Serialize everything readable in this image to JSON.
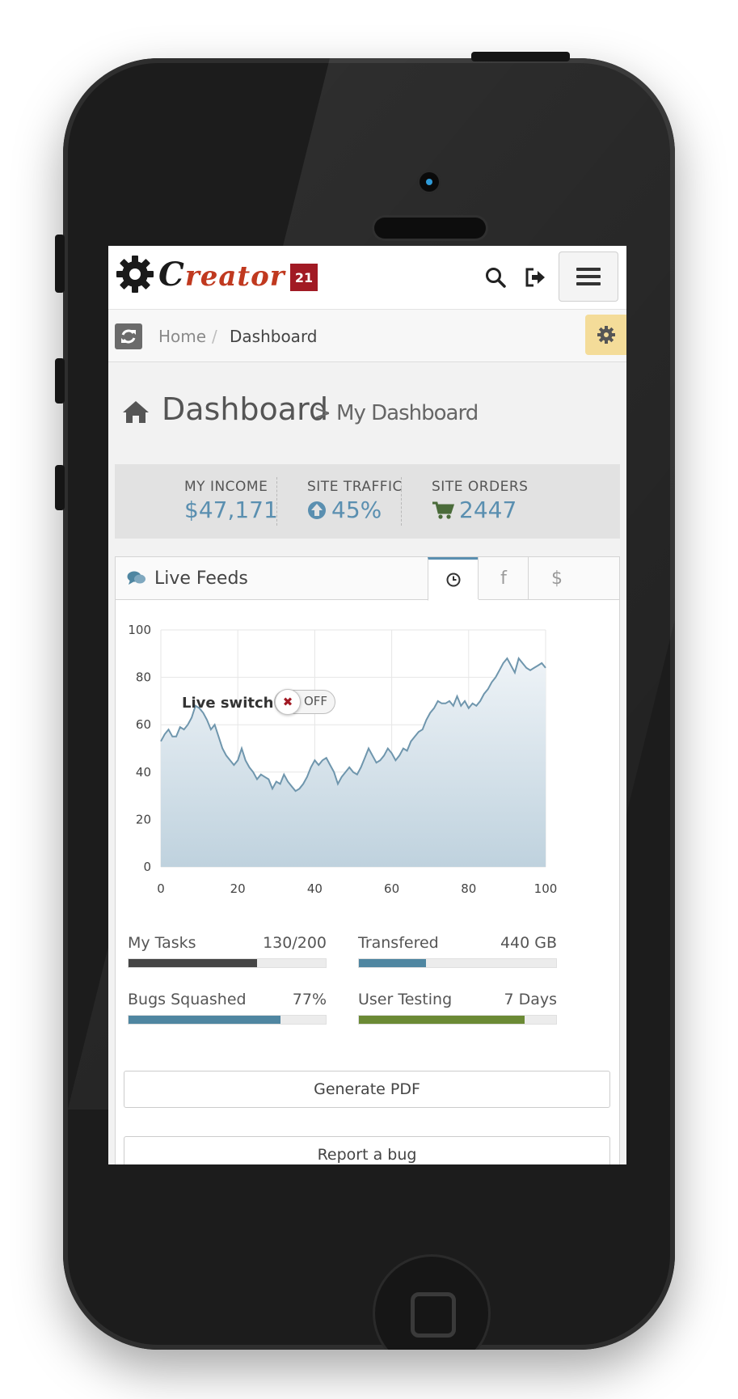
{
  "logo": {
    "text_first": "C",
    "text_rest": "reator",
    "badge": "21"
  },
  "breadcrumb": {
    "home": "Home",
    "separator": "/",
    "current": "Dashboard"
  },
  "page": {
    "title": "Dashboard",
    "subtitle": "> My Dashboard"
  },
  "stats": [
    {
      "label": "MY INCOME",
      "value": "$47,171"
    },
    {
      "label": "SITE TRAFFIC",
      "value": "45%",
      "icon": "arrow-up-circle-icon"
    },
    {
      "label": "SITE ORDERS",
      "value": "2447",
      "icon": "cart-icon"
    }
  ],
  "panel": {
    "title": "Live Feeds",
    "tabs": [
      {
        "label": "⊙",
        "icon": "clock-icon",
        "active": true
      },
      {
        "label": "f",
        "icon": "facebook-icon",
        "active": false
      },
      {
        "label": "$",
        "icon": "dollar-icon",
        "active": false
      }
    ],
    "live_switch": {
      "label": "Live switch",
      "state": "OFF"
    }
  },
  "chart_data": {
    "type": "area",
    "xlim": [
      0,
      100
    ],
    "ylim": [
      0,
      100
    ],
    "xticks": [
      0,
      20,
      40,
      60,
      80,
      100
    ],
    "yticks": [
      0,
      20,
      40,
      60,
      80,
      100
    ],
    "grid": true,
    "color": "#6f96ad",
    "x": [
      0,
      1,
      2,
      3,
      4,
      5,
      6,
      7,
      8,
      9,
      10,
      11,
      12,
      13,
      14,
      15,
      16,
      17,
      18,
      19,
      20,
      21,
      22,
      23,
      24,
      25,
      26,
      27,
      28,
      29,
      30,
      31,
      32,
      33,
      34,
      35,
      36,
      37,
      38,
      39,
      40,
      41,
      42,
      43,
      44,
      45,
      46,
      47,
      48,
      49,
      50,
      51,
      52,
      53,
      54,
      55,
      56,
      57,
      58,
      59,
      60,
      61,
      62,
      63,
      64,
      65,
      66,
      67,
      68,
      69,
      70,
      71,
      72,
      73,
      74,
      75,
      76,
      77,
      78,
      79,
      80,
      81,
      82,
      83,
      84,
      85,
      86,
      87,
      88,
      89,
      90,
      91,
      92,
      93,
      94,
      95,
      96,
      97,
      98,
      99,
      100
    ],
    "y": [
      53,
      56,
      58,
      55,
      55,
      59,
      58,
      60,
      63,
      68,
      67,
      65,
      62,
      58,
      60,
      55,
      50,
      47,
      45,
      43,
      45,
      50,
      45,
      42,
      40,
      37,
      39,
      38,
      37,
      33,
      36,
      35,
      39,
      36,
      34,
      32,
      33,
      35,
      38,
      42,
      45,
      43,
      45,
      46,
      43,
      40,
      35,
      38,
      40,
      42,
      40,
      39,
      42,
      46,
      50,
      47,
      44,
      45,
      47,
      50,
      48,
      45,
      47,
      50,
      49,
      53,
      55,
      57,
      58,
      62,
      65,
      67,
      70,
      69,
      69,
      70,
      68,
      72,
      68,
      70,
      67,
      69,
      68,
      70,
      73,
      75,
      78,
      80,
      83,
      86,
      88,
      85,
      82,
      88,
      86,
      84,
      83,
      84,
      85,
      86,
      84
    ]
  },
  "progress": [
    {
      "label": "My Tasks",
      "value": "130/200",
      "fraction": 0.65,
      "color": "#454545"
    },
    {
      "label": "Transfered",
      "value": "440 GB",
      "fraction": 0.34,
      "color": "#4f86a1"
    },
    {
      "label": "Bugs Squashed",
      "value": "77%",
      "fraction": 0.77,
      "color": "#4f86a1"
    },
    {
      "label": "User Testing",
      "value": "7 Days",
      "fraction": 0.84,
      "color": "#6b8a35"
    }
  ],
  "buttons": {
    "generate_pdf": "Generate PDF",
    "report_bug": "Report a bug"
  }
}
